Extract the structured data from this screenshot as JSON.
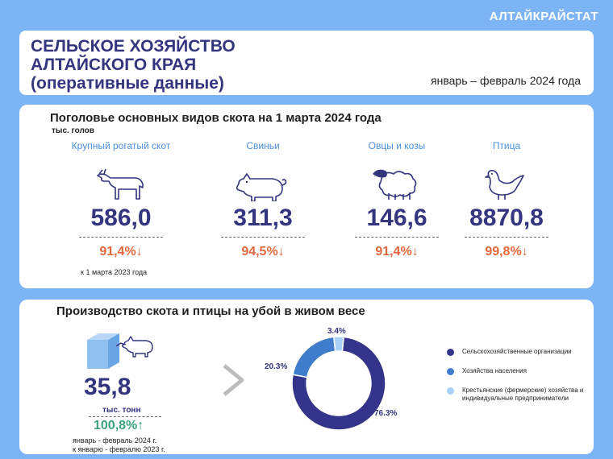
{
  "brand": "АЛТАЙКРАЙСТАТ",
  "header": {
    "title_lines": [
      "СЕЛЬСКОЕ ХОЗЯЙСТВО",
      "АЛТАЙСКОГО КРАЯ",
      "(оперативные данные)"
    ],
    "period": "январь – февраль 2024 года"
  },
  "livestock": {
    "title": "Поголовье основных видов скота на 1 марта 2024 года",
    "unit": "тыс. голов",
    "ref_note": "к 1 марта  2023  года",
    "items": [
      {
        "label": "Крупный рогатый скот",
        "icon": "cow-icon",
        "value": "586,0",
        "pct": "91,4%↓"
      },
      {
        "label": "Свиньи",
        "icon": "pig-icon",
        "value": "311,3",
        "pct": "94,5%↓"
      },
      {
        "label": "Овцы и козы",
        "icon": "sheep-icon",
        "value": "146,6",
        "pct": "91,4%↓"
      },
      {
        "label": "Птица",
        "icon": "bird-icon",
        "value": "8870,8",
        "pct": "99,8%↓"
      }
    ]
  },
  "production": {
    "title": "Производство скота  и птицы на убой в живом весе",
    "value": "35,8",
    "unit": "тыс. тонн",
    "pct": "100,8%↑",
    "note_lines": [
      "январь  - февраль  2024  г.",
      "к январю  - февралю  2023  г."
    ],
    "icon": "box-pig-icon"
  },
  "chart_data": {
    "type": "pie",
    "variant": "donut",
    "categories": [
      "Сельскохозяйственные организации",
      "Хозяйства населения",
      "Крестьянские (фермерские) хозяйства и индивидуальные предприниматели"
    ],
    "values": [
      76.3,
      20.3,
      3.4
    ],
    "value_labels": [
      "76.3%",
      "20.3%",
      "3.4%"
    ],
    "colors": [
      "#33358a",
      "#3f7ccc",
      "#a9d0f7"
    ],
    "legend_position": "right"
  }
}
